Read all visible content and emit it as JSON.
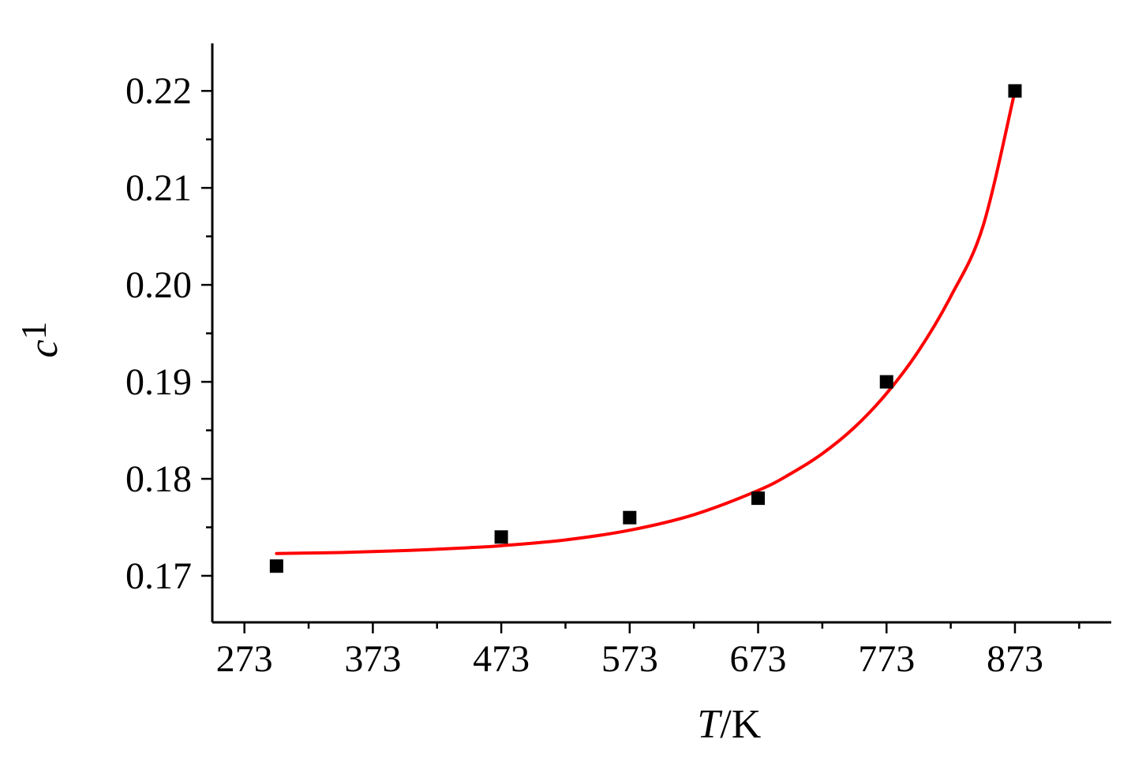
{
  "chart_data": {
    "type": "scatter",
    "title": "",
    "xlabel": {
      "italic": "T",
      "unit": "/K"
    },
    "ylabel": {
      "italic": "c",
      "subscript": "1"
    },
    "xlim": [
      248,
      948
    ],
    "ylim": [
      0.1652,
      0.2249
    ],
    "x_ticks": [
      273,
      373,
      473,
      573,
      673,
      773,
      873
    ],
    "x_tick_labels": [
      "273",
      "373",
      "473",
      "573",
      "673",
      "773",
      "873"
    ],
    "x_minor_step": 50,
    "y_ticks": [
      0.17,
      0.18,
      0.19,
      0.2,
      0.21,
      0.22
    ],
    "y_tick_labels": [
      "0.17",
      "0.18",
      "0.19",
      "0.20",
      "0.21",
      "0.22"
    ],
    "y_minor_step": 0.005,
    "grid": false,
    "legend": "none",
    "series": [
      {
        "kind": "points",
        "marker": "square",
        "color": "#000000",
        "x": [
          298,
          473,
          573,
          673,
          773,
          873
        ],
        "y": [
          0.171,
          0.174,
          0.176,
          0.178,
          0.19,
          0.22
        ]
      },
      {
        "kind": "fit",
        "color": "#ff0000",
        "x": [
          298,
          348,
          398,
          448,
          473,
          523,
          573,
          623,
          673,
          698,
          723,
          748,
          773,
          798,
          823,
          848,
          873
        ],
        "y": [
          0.1723,
          0.1724,
          0.1726,
          0.1729,
          0.1731,
          0.1737,
          0.1747,
          0.1763,
          0.1788,
          0.1805,
          0.1826,
          0.1853,
          0.1888,
          0.1932,
          0.1988,
          0.206,
          0.22
        ]
      }
    ]
  }
}
